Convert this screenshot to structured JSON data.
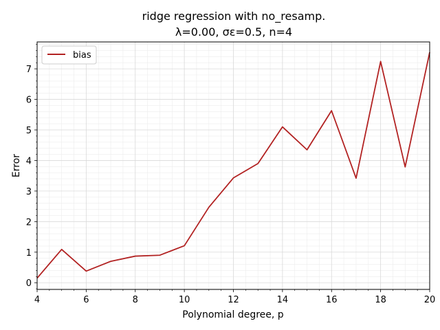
{
  "chart_data": {
    "type": "line",
    "title_line1": "ridge regression with no_resamp.",
    "title_line2": "λ=0.00,  σε=0.5,  n=4",
    "xlabel": "Polynomial degree, p",
    "ylabel": "Error",
    "xlim": [
      4,
      20
    ],
    "ylim": [
      -0.22,
      7.88
    ],
    "xticks": [
      4,
      6,
      8,
      10,
      12,
      14,
      16,
      18,
      20
    ],
    "yticks": [
      0,
      1,
      2,
      3,
      4,
      5,
      6,
      7
    ],
    "grid": true,
    "legend_position": "top-left",
    "series": [
      {
        "name": "bias",
        "color": "#b22222",
        "x": [
          4,
          5,
          6,
          7,
          8,
          9,
          10,
          11,
          12,
          13,
          14,
          15,
          16,
          17,
          18,
          19,
          20
        ],
        "y": [
          0.15,
          1.09,
          0.38,
          0.7,
          0.87,
          0.9,
          1.21,
          2.47,
          3.43,
          3.9,
          5.1,
          4.35,
          5.63,
          3.42,
          7.24,
          3.79,
          7.54
        ]
      }
    ]
  }
}
